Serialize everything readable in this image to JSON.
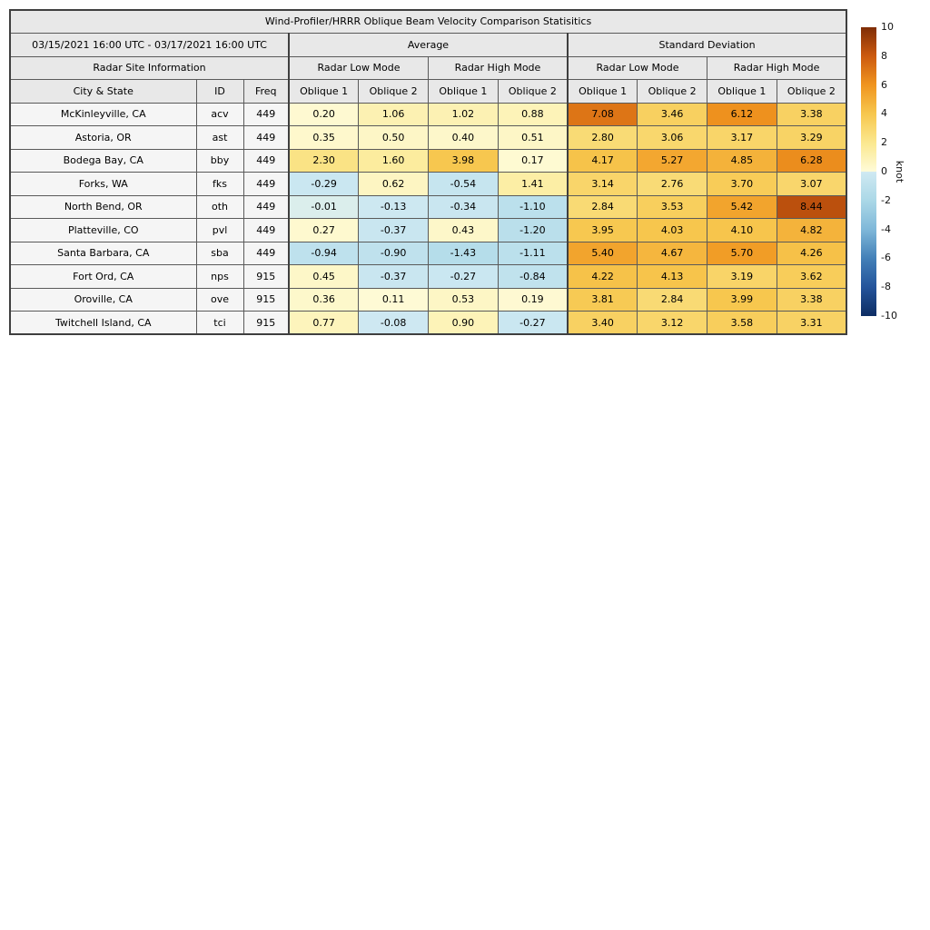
{
  "title": "Wind-Profiler/HRRR Oblique Beam Velocity Comparison Statisitics",
  "header": {
    "date_range": "03/15/2021 16:00 UTC - 03/17/2021 16:00 UTC",
    "group_average": "Average",
    "group_std": "Standard Deviation",
    "site_info": "Radar Site Information",
    "mode_labels": [
      "Radar Low Mode",
      "Radar High Mode",
      "Radar Low Mode",
      "Radar High Mode"
    ],
    "col_city": "City & State",
    "col_id": "ID",
    "col_freq": "Freq",
    "oblique_labels": [
      "Oblique 1",
      "Oblique 2",
      "Oblique 1",
      "Oblique 2",
      "Oblique 1",
      "Oblique 2",
      "Oblique 1",
      "Oblique 2"
    ]
  },
  "chart_data": {
    "type": "heatmap",
    "title": "Wind-Profiler/HRRR Oblique Beam Velocity Comparison Statisitics",
    "unit": "knot",
    "vmin": -10,
    "vmax": 10,
    "ticks": [
      10,
      8,
      6,
      4,
      2,
      0,
      -2,
      -4,
      -6,
      -8,
      -10
    ],
    "column_groups": [
      "Average",
      "Standard Deviation"
    ],
    "mode_groups": [
      "Radar Low Mode",
      "Radar High Mode"
    ],
    "value_columns": [
      "Avg Low Oblique 1",
      "Avg Low Oblique 2",
      "Avg High Oblique 1",
      "Avg High Oblique 2",
      "Std Low Oblique 1",
      "Std Low Oblique 2",
      "Std High Oblique 1",
      "Std High Oblique 2"
    ],
    "rows": [
      {
        "city": "McKinleyville, CA",
        "id": "acv",
        "freq": "449",
        "values": [
          0.2,
          1.06,
          1.02,
          0.88,
          7.08,
          3.46,
          6.12,
          3.38
        ]
      },
      {
        "city": "Astoria, OR",
        "id": "ast",
        "freq": "449",
        "values": [
          0.35,
          0.5,
          0.4,
          0.51,
          2.8,
          3.06,
          3.17,
          3.29
        ]
      },
      {
        "city": "Bodega Bay, CA",
        "id": "bby",
        "freq": "449",
        "values": [
          2.3,
          1.6,
          3.98,
          0.17,
          4.17,
          5.27,
          4.85,
          6.28
        ]
      },
      {
        "city": "Forks, WA",
        "id": "fks",
        "freq": "449",
        "values": [
          -0.29,
          0.62,
          -0.54,
          1.41,
          3.14,
          2.76,
          3.7,
          3.07
        ]
      },
      {
        "city": "North Bend, OR",
        "id": "oth",
        "freq": "449",
        "values": [
          -0.01,
          -0.13,
          -0.34,
          -1.1,
          2.84,
          3.53,
          5.42,
          8.44
        ]
      },
      {
        "city": "Platteville, CO",
        "id": "pvl",
        "freq": "449",
        "values": [
          0.27,
          -0.37,
          0.43,
          -1.2,
          3.95,
          4.03,
          4.1,
          4.82
        ]
      },
      {
        "city": "Santa Barbara, CA",
        "id": "sba",
        "freq": "449",
        "values": [
          -0.94,
          -0.9,
          -1.43,
          -1.11,
          5.4,
          4.67,
          5.7,
          4.26
        ]
      },
      {
        "city": "Fort Ord, CA",
        "id": "nps",
        "freq": "915",
        "values": [
          0.45,
          -0.37,
          -0.27,
          -0.84,
          4.22,
          4.13,
          3.19,
          3.62
        ]
      },
      {
        "city": "Oroville, CA",
        "id": "ove",
        "freq": "915",
        "values": [
          0.36,
          0.11,
          0.53,
          0.19,
          3.81,
          2.84,
          3.99,
          3.38
        ]
      },
      {
        "city": "Twitchell Island, CA",
        "id": "tci",
        "freq": "915",
        "values": [
          0.77,
          -0.08,
          0.9,
          -0.27,
          3.4,
          3.12,
          3.58,
          3.31
        ]
      }
    ]
  },
  "colors": {
    "header_bg": "#e8e8e8",
    "meta_bg": "#f5f5f5",
    "border": "#5a5a5a",
    "border_strong": "#3f3f3f",
    "cmap_stops": [
      [
        -10,
        "#0d2d63"
      ],
      [
        -8,
        "#24549b"
      ],
      [
        -6,
        "#4380b8"
      ],
      [
        -4,
        "#7fb8d9"
      ],
      [
        -2,
        "#abd8e7"
      ],
      [
        -0.02,
        "#cfe9f2"
      ],
      [
        0.02,
        "#fefbd8"
      ],
      [
        2,
        "#fbe88f"
      ],
      [
        4,
        "#f7c74e"
      ],
      [
        6,
        "#f0951f"
      ],
      [
        8,
        "#cc5a0f"
      ],
      [
        10,
        "#7f2d06"
      ]
    ]
  }
}
